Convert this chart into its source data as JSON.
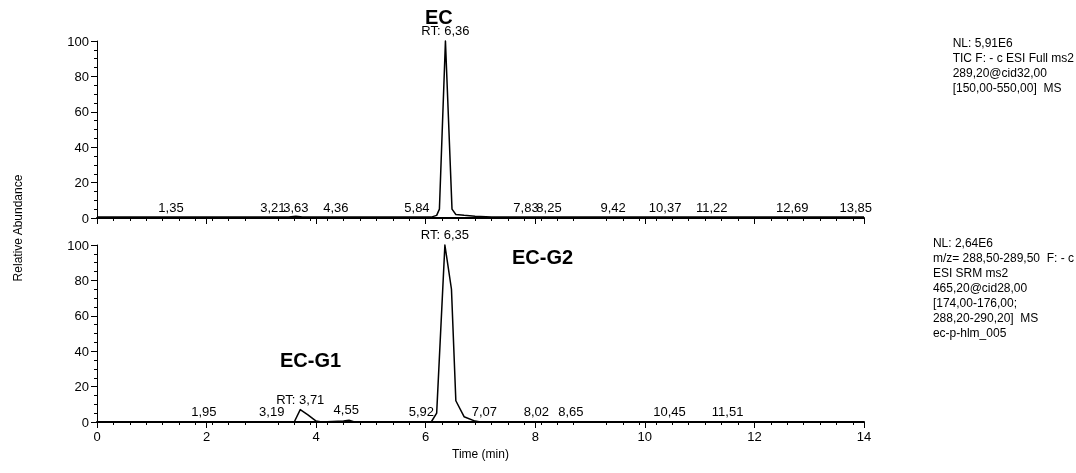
{
  "chart_data": [
    {
      "type": "line",
      "title": "EC",
      "ylabel": "Relative Abundance",
      "tick_labels": "y",
      "marker": "none",
      "line_style": "solid",
      "xlim": [
        0,
        14
      ],
      "xticks": [
        0,
        2,
        4,
        6,
        8,
        10,
        12,
        14
      ],
      "ylim": [
        0,
        100
      ],
      "yticks": [
        0,
        20,
        40,
        60,
        80,
        100
      ],
      "x": [
        0,
        1,
        2,
        3,
        3.5,
        3.63,
        3.75,
        5,
        6,
        6.1,
        6.2,
        6.25,
        6.36,
        6.48,
        6.55,
        6.7,
        6.9,
        7.2,
        8,
        10,
        12,
        14
      ],
      "series": [
        {
          "color": "#000000",
          "values": [
            0.5,
            0.5,
            0.5,
            0.5,
            0.5,
            1,
            0.5,
            0.5,
            0.5,
            0.5,
            1.5,
            5,
            100,
            5,
            2,
            1.5,
            1,
            0.5,
            0.5,
            0.5,
            0.5,
            0.5
          ]
        }
      ],
      "annotations": [
        {
          "text": "RT: 6,36",
          "x": 6.36,
          "y": 100
        },
        {
          "text": "1,35",
          "x": 1.35,
          "y": 0
        },
        {
          "text": "3,21",
          "x": 3.21,
          "y": 0
        },
        {
          "text": "3,63",
          "x": 3.63,
          "y": 0
        },
        {
          "text": "4,36",
          "x": 4.36,
          "y": 0
        },
        {
          "text": "5,84",
          "x": 5.84,
          "y": 0
        },
        {
          "text": "7,83",
          "x": 7.83,
          "y": 0
        },
        {
          "text": "8,25",
          "x": 8.25,
          "y": 0
        },
        {
          "text": "9,42",
          "x": 9.42,
          "y": 0
        },
        {
          "text": "10,37",
          "x": 10.37,
          "y": 0
        },
        {
          "text": "11,22",
          "x": 11.22,
          "y": 0
        },
        {
          "text": "12,69",
          "x": 12.69,
          "y": 0
        },
        {
          "text": "13,85",
          "x": 13.85,
          "y": 0
        },
        "NL: 5,91E6\nTIC F: - c ESI Full ms2\n289,20@cid32,00\n[150,00-550,00]  MS"
      ]
    },
    {
      "type": "line",
      "xlabel": "Time (min)",
      "marker": "none",
      "line_style": "solid",
      "xlim": [
        0,
        14
      ],
      "xticks": [
        0,
        2,
        4,
        6,
        8,
        10,
        12,
        14
      ],
      "ylim": [
        0,
        100
      ],
      "yticks": [
        0,
        20,
        40,
        60,
        80,
        100
      ],
      "x": [
        0,
        2,
        3.6,
        3.71,
        3.85,
        4,
        4.1,
        4.5,
        4.6,
        4.7,
        6,
        6.1,
        6.2,
        6.35,
        6.47,
        6.55,
        6.7,
        6.9,
        7,
        10,
        14
      ],
      "series": [
        {
          "color": "#000000",
          "values": [
            0,
            0,
            0,
            7,
            4,
            0.5,
            0,
            0.5,
            1,
            0,
            0,
            0,
            5,
            100,
            75,
            12,
            3,
            0.5,
            0,
            0,
            0
          ]
        }
      ],
      "annotations": [
        {
          "text": "RT: 6,35",
          "x": 6.35,
          "y": 100
        },
        {
          "text": "RT: 3,71",
          "x": 3.71,
          "y": 7
        },
        "EC-G2",
        "EC-G1",
        {
          "text": "1,95",
          "x": 1.95,
          "y": 0
        },
        {
          "text": "3,19",
          "x": 3.19,
          "y": 0
        },
        {
          "text": "4,55",
          "x": 4.55,
          "y": 1
        },
        {
          "text": "5,92",
          "x": 5.92,
          "y": 0
        },
        {
          "text": "7,07",
          "x": 7.07,
          "y": 0
        },
        {
          "text": "8,02",
          "x": 8.02,
          "y": 0
        },
        {
          "text": "8,65",
          "x": 8.65,
          "y": 0
        },
        {
          "text": "10,45",
          "x": 10.45,
          "y": 0
        },
        {
          "text": "11,51",
          "x": 11.51,
          "y": 0
        },
        "NL: 2,64E6\nm/z= 288,50-289,50  F: - c\nESI SRM ms2\n465,20@cid28,00\n[174,00-176,00;\n288,20-290,20]  MS\nec-p-hlm_005"
      ]
    }
  ]
}
